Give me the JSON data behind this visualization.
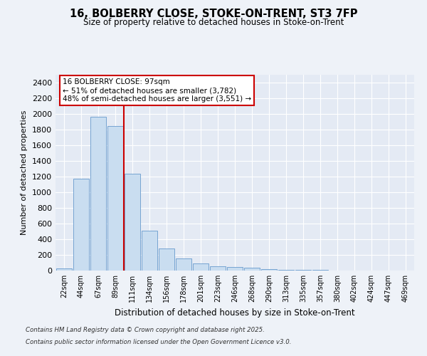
{
  "title_line1": "16, BOLBERRY CLOSE, STOKE-ON-TRENT, ST3 7FP",
  "title_line2": "Size of property relative to detached houses in Stoke-on-Trent",
  "xlabel": "Distribution of detached houses by size in Stoke-on-Trent",
  "ylabel": "Number of detached properties",
  "bar_labels": [
    "22sqm",
    "44sqm",
    "67sqm",
    "89sqm",
    "111sqm",
    "134sqm",
    "156sqm",
    "178sqm",
    "201sqm",
    "223sqm",
    "246sqm",
    "268sqm",
    "290sqm",
    "313sqm",
    "335sqm",
    "357sqm",
    "380sqm",
    "402sqm",
    "424sqm",
    "447sqm",
    "469sqm"
  ],
  "bar_values": [
    25,
    1170,
    1960,
    1850,
    1240,
    510,
    280,
    155,
    90,
    55,
    45,
    40,
    15,
    10,
    8,
    5,
    3,
    2,
    1,
    1,
    1
  ],
  "bar_color": "#c9ddf0",
  "bar_edge_color": "#6699cc",
  "vline_pos": 3.5,
  "vline_color": "#cc0000",
  "annotation_text": "16 BOLBERRY CLOSE: 97sqm\n← 51% of detached houses are smaller (3,782)\n48% of semi-detached houses are larger (3,551) →",
  "annotation_box_color": "#cc0000",
  "ylim": [
    0,
    2500
  ],
  "yticks": [
    0,
    200,
    400,
    600,
    800,
    1000,
    1200,
    1400,
    1600,
    1800,
    2000,
    2200,
    2400
  ],
  "footer_line1": "Contains HM Land Registry data © Crown copyright and database right 2025.",
  "footer_line2": "Contains public sector information licensed under the Open Government Licence v3.0.",
  "bg_color": "#eef2f8",
  "plot_bg_color": "#e4eaf4"
}
